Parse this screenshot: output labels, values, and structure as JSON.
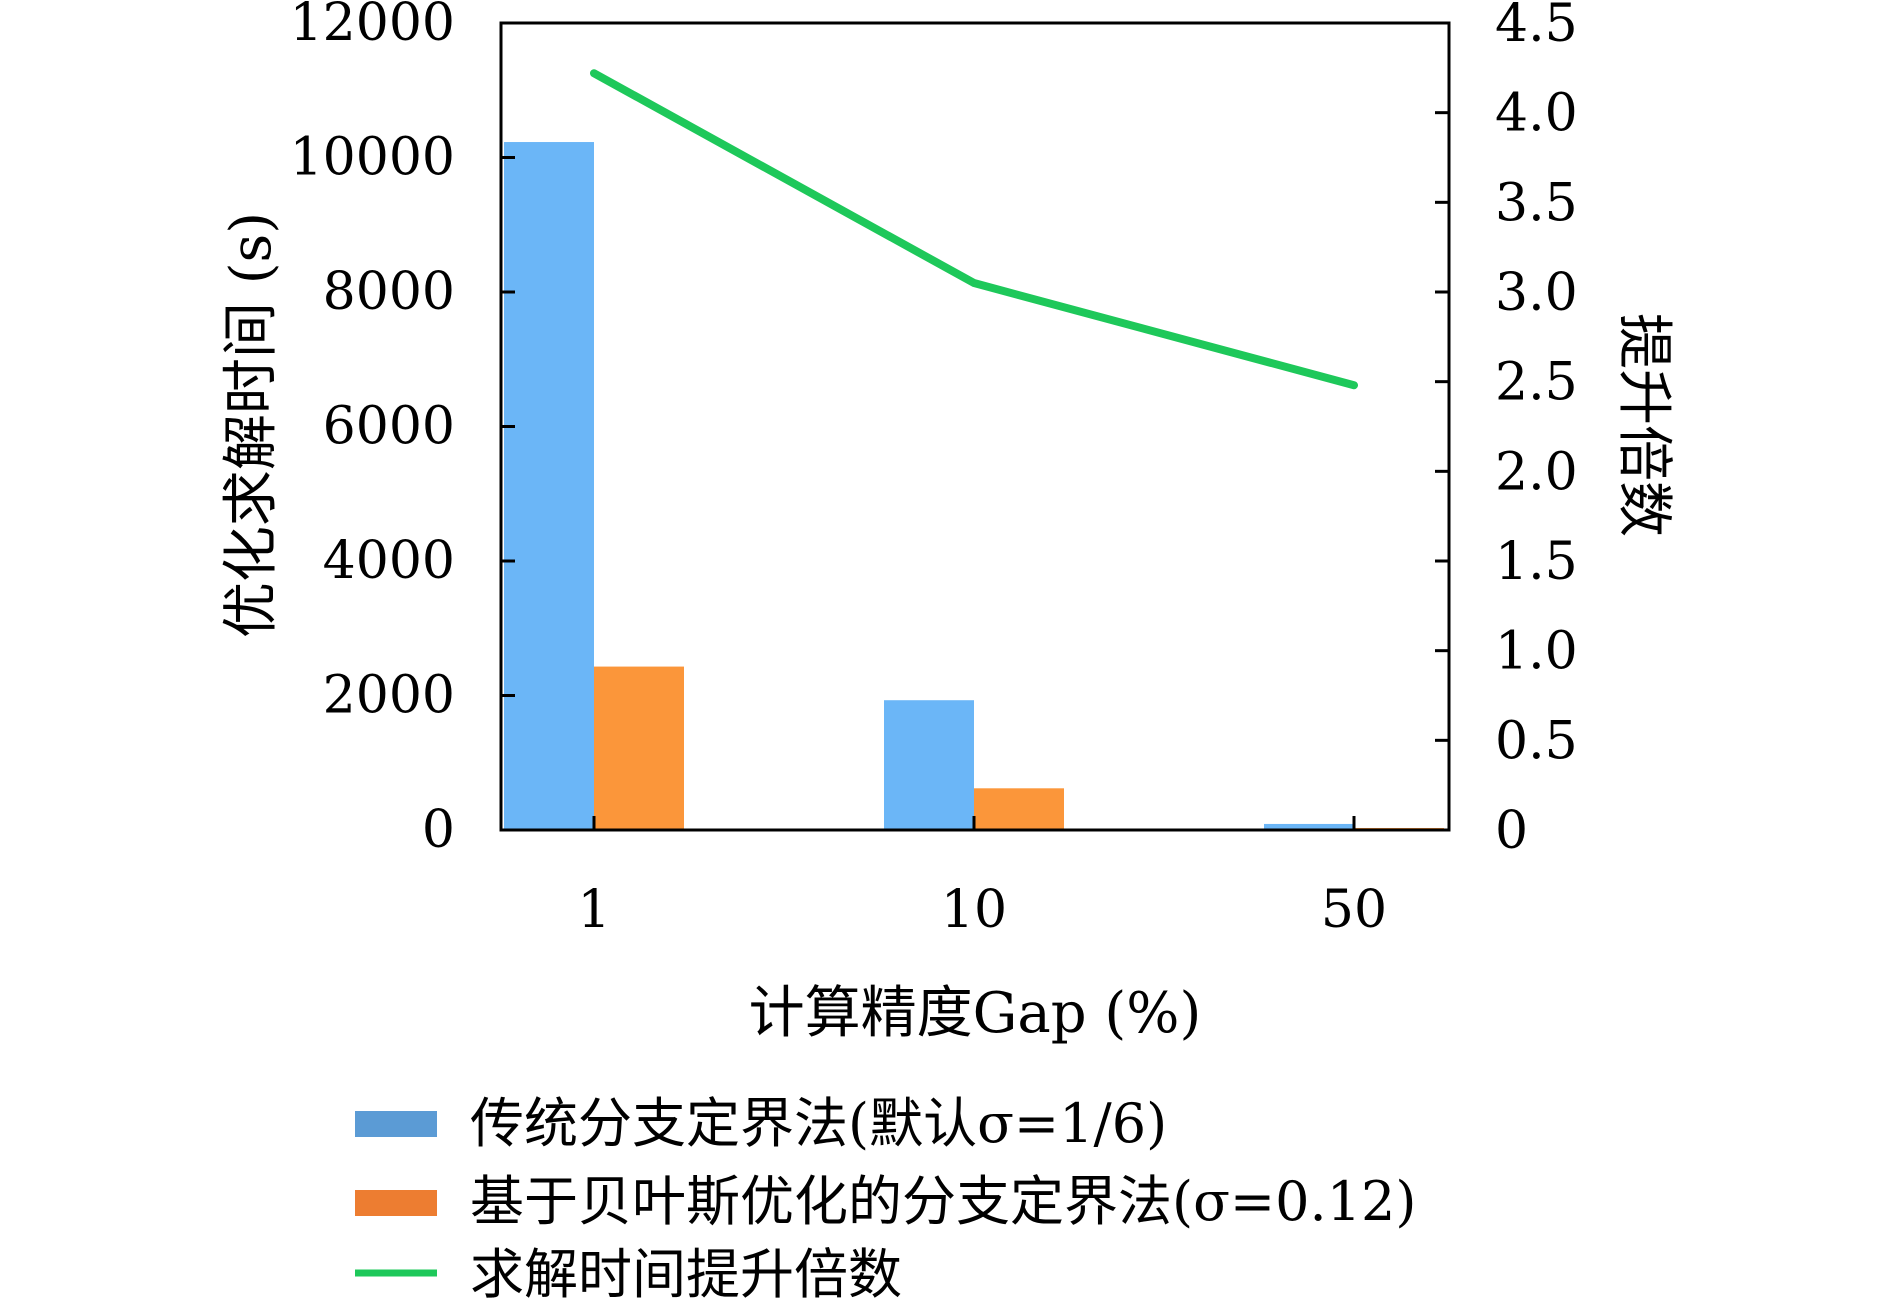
{
  "chart_data": {
    "type": "bar",
    "categories": [
      "1",
      "10",
      "50"
    ],
    "xlabel": "计算精度Gap (%)",
    "ylabel": "优化求解时间 (s)",
    "y2label": "提升倍数",
    "ylim": [
      0,
      12000
    ],
    "y2lim": [
      0,
      4.5
    ],
    "y_ticks": [
      "0",
      "2000",
      "4000",
      "6000",
      "8000",
      "10000",
      "12000"
    ],
    "y2_ticks": [
      "0",
      "0.5",
      "1.0",
      "1.5",
      "2.0",
      "2.5",
      "3.0",
      "3.5",
      "4.0",
      "4.5"
    ],
    "series": [
      {
        "name": "传统分支定界法(默认σ=1/6)",
        "type": "bar",
        "axis": "left",
        "color": "#6bb6f7",
        "legend_color": "#5b9bd5",
        "values": [
          10230,
          1930,
          90
        ]
      },
      {
        "name": "基于贝叶斯优化的分支定界法(σ=0.12)",
        "type": "bar",
        "axis": "left",
        "color": "#fb963a",
        "legend_color": "#ed7d31",
        "values": [
          2430,
          620,
          30
        ]
      },
      {
        "name": "求解时间提升倍数",
        "type": "line",
        "axis": "right",
        "color": "#1ec85a",
        "values": [
          4.22,
          3.05,
          2.48
        ]
      }
    ],
    "grid": false,
    "legend_position": "bottom"
  }
}
